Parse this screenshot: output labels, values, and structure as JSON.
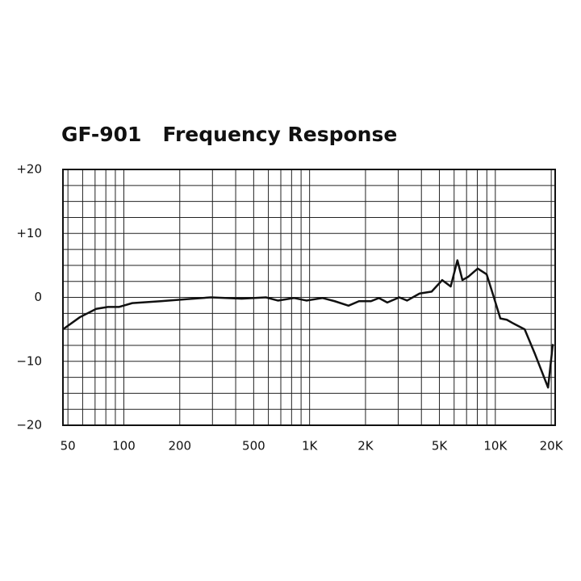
{
  "chart_data": {
    "type": "line",
    "title": "GF-901   Frequency Response",
    "log_x": true,
    "xlim": [
      47,
      21000
    ],
    "ylim": [
      -20,
      20
    ],
    "xticks": [
      50,
      100,
      200,
      500,
      {
        "value": 1000,
        "label": "1K"
      },
      {
        "value": 2000,
        "label": "2K"
      },
      {
        "value": 5000,
        "label": "5K"
      },
      {
        "value": 10000,
        "label": "10K"
      },
      {
        "value": 20000,
        "label": "20K"
      }
    ],
    "yticks": [
      {
        "value": 20,
        "label": "+20"
      },
      {
        "value": 10,
        "label": "+10"
      },
      0,
      {
        "value": -10,
        "label": "−10"
      },
      {
        "value": -20,
        "label": "−20"
      }
    ],
    "xgrid": [
      50,
      60,
      70,
      80,
      90,
      100,
      200,
      300,
      400,
      500,
      600,
      700,
      800,
      900,
      1000,
      2000,
      3000,
      4000,
      5000,
      6000,
      7000,
      8000,
      9000,
      10000,
      20000
    ],
    "ygrid": [
      -20,
      -17.5,
      -15,
      -12.5,
      -10,
      -7.5,
      -5,
      -2.5,
      0,
      2.5,
      5,
      7.5,
      10,
      12.5,
      15,
      17.5,
      20
    ],
    "grid": true,
    "color": "#111111",
    "x": [
      47,
      58,
      71,
      82,
      94,
      111,
      158,
      214,
      294,
      431,
      582,
      675,
      826,
      962,
      1175,
      1365,
      1620,
      1845,
      2140,
      2360,
      2620,
      3040,
      3350,
      3910,
      4540,
      5175,
      5750,
      6250,
      6650,
      7130,
      8040,
      8980,
      9800,
      10640,
      11530,
      12360,
      14390,
      16370,
      19230,
      20400
    ],
    "values": [
      -5.0,
      -3.1,
      -1.8,
      -1.5,
      -1.5,
      -0.9,
      -0.6,
      -0.3,
      0,
      -0.2,
      0,
      -0.5,
      -0.1,
      -0.5,
      -0.1,
      -0.6,
      -1.3,
      -0.6,
      -0.6,
      -0.1,
      -0.8,
      0,
      -0.5,
      0.6,
      0.9,
      2.7,
      1.7,
      5.8,
      2.7,
      3.2,
      4.5,
      3.6,
      0.1,
      -3.3,
      -3.5,
      -4.0,
      -5.0,
      -8.9,
      -14.1,
      -7.3
    ]
  }
}
